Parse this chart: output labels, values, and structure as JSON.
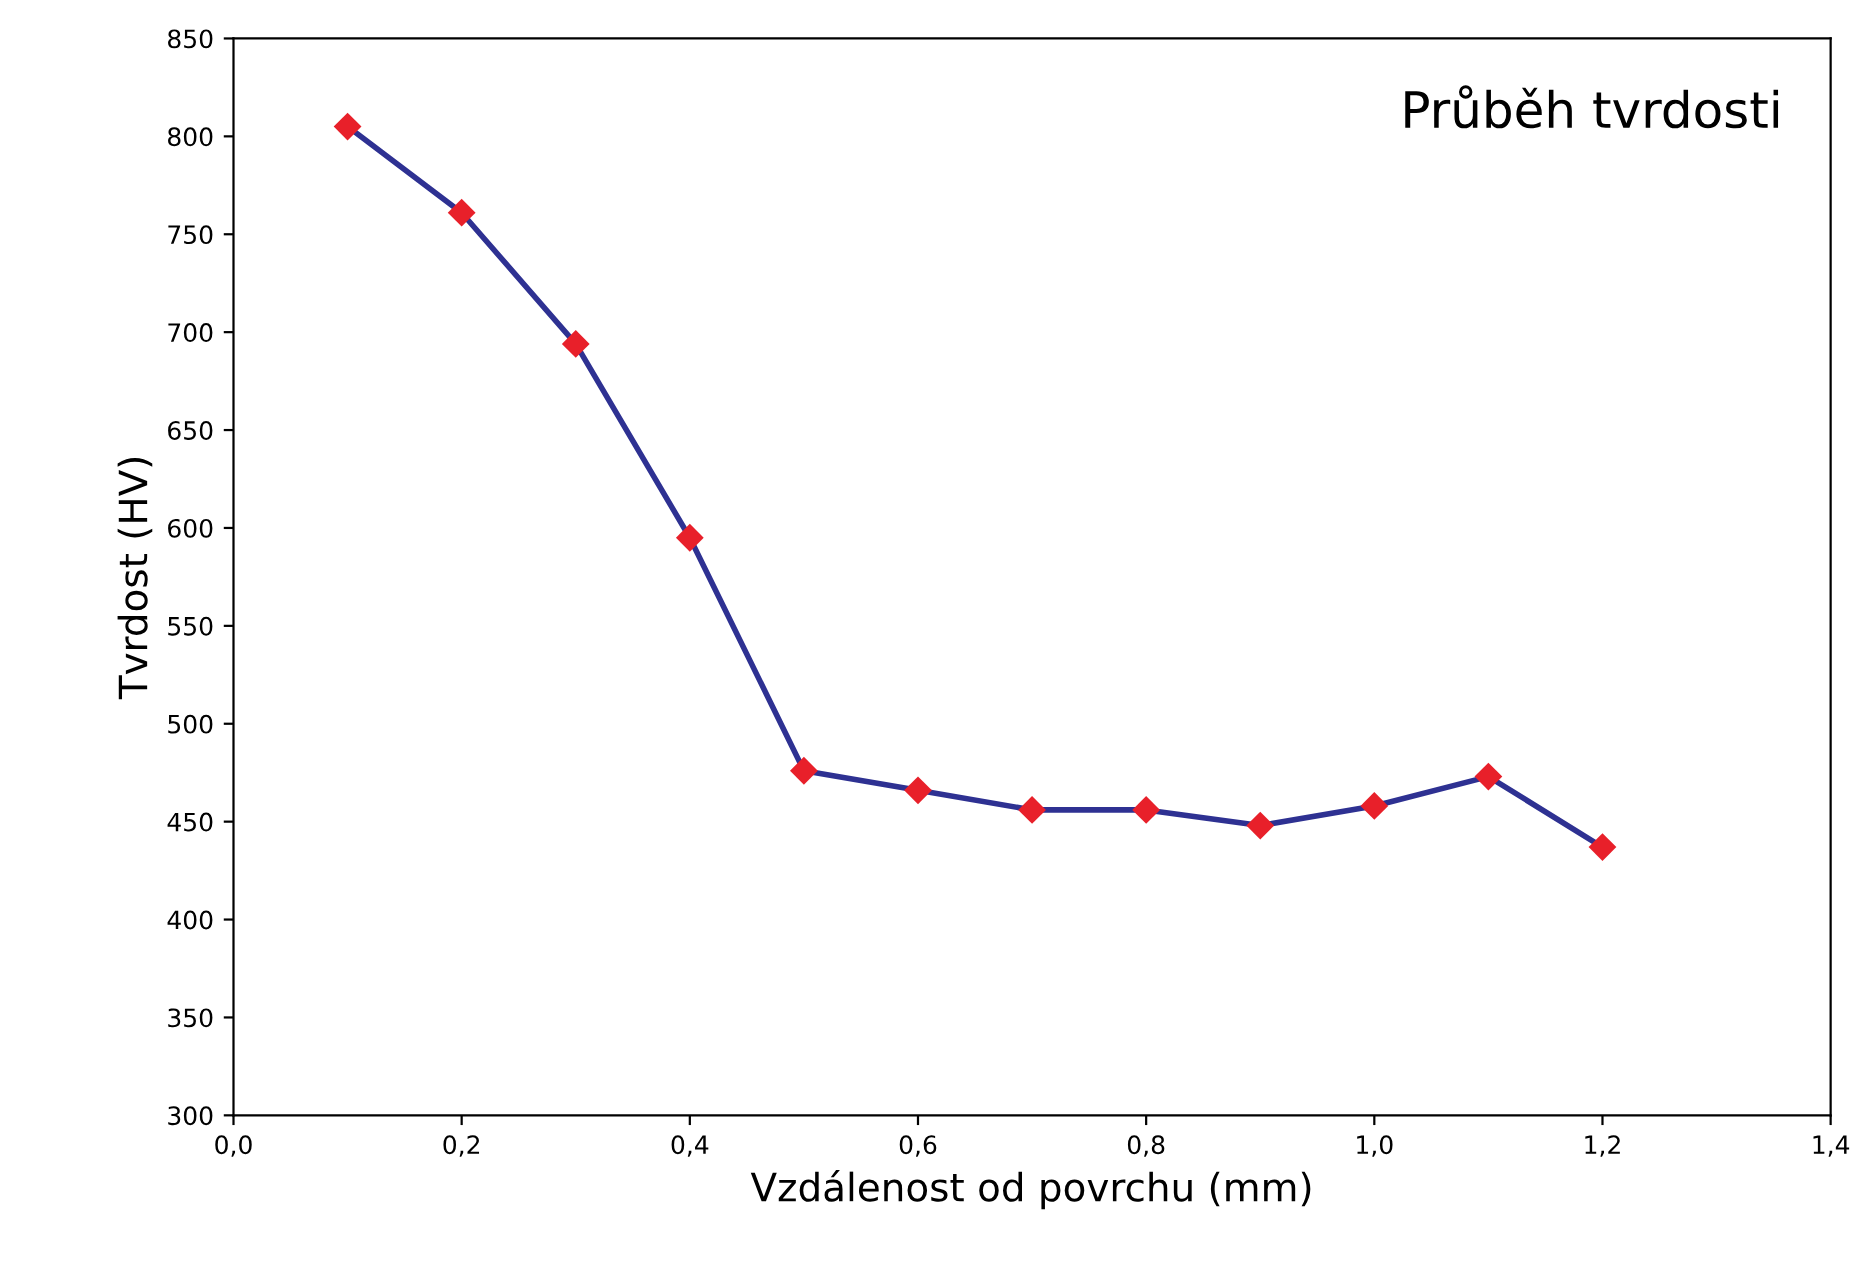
{
  "chart_data": {
    "type": "line",
    "title": "Průběh tvrdosti",
    "xlabel": "Vzdálenost od povrchu (mm)",
    "ylabel": "Tvrdost (HV)",
    "x": [
      0.1,
      0.2,
      0.3,
      0.4,
      0.5,
      0.6,
      0.7,
      0.8,
      0.9,
      1.0,
      1.1,
      1.2
    ],
    "series": [
      {
        "color": "#2e3192",
        "colors": [
          "#e8202a",
          "#e8202a",
          "#e8202a",
          "#e8202a",
          "#e8202a",
          "#e8202a",
          "#e8202a",
          "#e8202a",
          "#e8202a",
          "#e8202a",
          "#e8202a",
          "#e8202a"
        ],
        "values": [
          805,
          761,
          694,
          595,
          476,
          466,
          456,
          456,
          448,
          458,
          473,
          437
        ]
      }
    ],
    "xlim": [
      0,
      1.4
    ],
    "xticks": [
      {
        "value": 0,
        "label": "0,0"
      },
      {
        "value": 0.2,
        "label": "0,2"
      },
      {
        "value": 0.4,
        "label": "0,4"
      },
      {
        "value": 0.6,
        "label": "0,6"
      },
      {
        "value": 0.8,
        "label": "0,8"
      },
      {
        "value": 1.0,
        "label": "1,0"
      },
      {
        "value": 1.2,
        "label": "1,2"
      },
      {
        "value": 1.4,
        "label": "1,4"
      }
    ],
    "ylim": [
      300,
      850
    ],
    "yticks": [
      300,
      350,
      400,
      450,
      500,
      550,
      600,
      650,
      700,
      750,
      800,
      850
    ],
    "grid": false,
    "marker": "diamond",
    "line_style": "solid"
  }
}
